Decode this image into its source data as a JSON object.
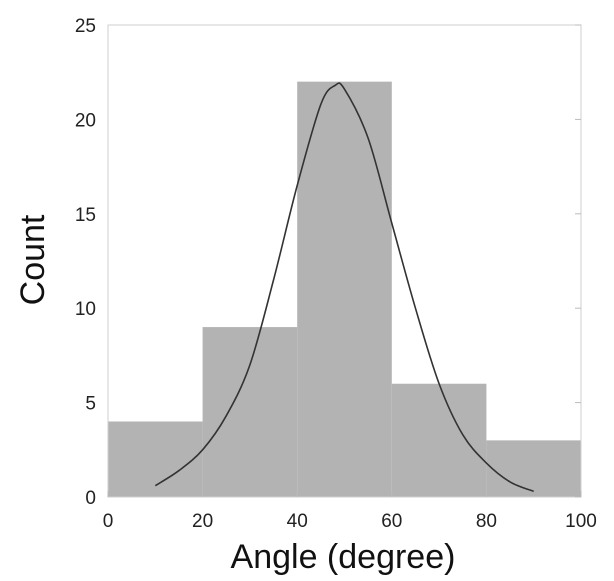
{
  "chart_data": {
    "type": "bar",
    "title": "",
    "xlabel": "Angle (degree)",
    "ylabel": "Count",
    "xlim": [
      0,
      100
    ],
    "ylim": [
      0,
      25
    ],
    "x_ticks": [
      0,
      20,
      40,
      60,
      80,
      100
    ],
    "y_ticks": [
      0,
      5,
      10,
      15,
      20,
      25
    ],
    "grid": false,
    "bar_color": "#b3b3b3",
    "curve_color": "#333333",
    "bins": [
      {
        "start": 0,
        "end": 20,
        "count": 4
      },
      {
        "start": 20,
        "end": 40,
        "count": 9
      },
      {
        "start": 40,
        "end": 60,
        "count": 22
      },
      {
        "start": 60,
        "end": 80,
        "count": 6
      },
      {
        "start": 80,
        "end": 100,
        "count": 3
      }
    ],
    "fit_curve": {
      "type": "gaussian",
      "points": [
        [
          10,
          0.6
        ],
        [
          15,
          1.4
        ],
        [
          20,
          2.5
        ],
        [
          25,
          4.3
        ],
        [
          30,
          7.0
        ],
        [
          35,
          11.5
        ],
        [
          40,
          16.5
        ],
        [
          45,
          20.8
        ],
        [
          48,
          21.8
        ],
        [
          50,
          21.6
        ],
        [
          55,
          19.0
        ],
        [
          60,
          14.5
        ],
        [
          65,
          10.0
        ],
        [
          70,
          6.0
        ],
        [
          75,
          3.3
        ],
        [
          80,
          1.8
        ],
        [
          85,
          0.8
        ],
        [
          90,
          0.3
        ]
      ]
    }
  }
}
